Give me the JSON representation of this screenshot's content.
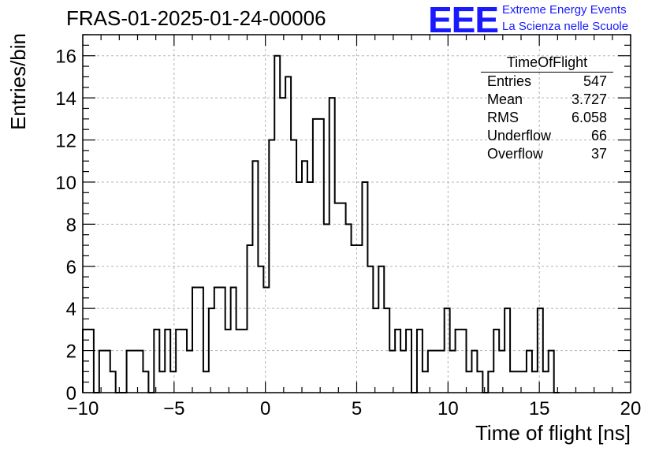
{
  "title": "FRAS-01-2025-01-24-00006",
  "logo": {
    "mark": "EEE",
    "line1": "Extreme Energy Events",
    "line2": "La Scienza nelle Scuole"
  },
  "stats": {
    "title": "TimeOfFlight",
    "rows": [
      {
        "label": "Entries",
        "value": "547"
      },
      {
        "label": "Mean",
        "value": "3.727"
      },
      {
        "label": "RMS",
        "value": "6.058"
      },
      {
        "label": "Underflow",
        "value": "66"
      },
      {
        "label": "Overflow",
        "value": "37"
      }
    ]
  },
  "colors": {
    "line": "#000000",
    "grid": "#b4b4b4",
    "logo": "#1a1aff"
  },
  "chart_data": {
    "type": "histogram",
    "xlabel": "Time of flight [ns]",
    "ylabel": "Entries/bin",
    "xlim": [
      -10,
      20
    ],
    "ylim": [
      0,
      17
    ],
    "grid": true,
    "bin_width": 0.3,
    "x_ticks": [
      -10,
      -5,
      0,
      5,
      10,
      15,
      20
    ],
    "x_tick_labels": [
      "−10",
      "−5",
      "0",
      "5",
      "10",
      "15",
      "20"
    ],
    "y_ticks": [
      0,
      2,
      4,
      6,
      8,
      10,
      12,
      14,
      16
    ],
    "y_tick_labels": [
      "0",
      "2",
      "4",
      "6",
      "8",
      "10",
      "12",
      "14",
      "16"
    ],
    "values": [
      3,
      3,
      0,
      2,
      2,
      1,
      0,
      0,
      2,
      2,
      2,
      1,
      0,
      3,
      1,
      3,
      1,
      3,
      3,
      2,
      5,
      5,
      1,
      4,
      5,
      5,
      3,
      5,
      3,
      3,
      7,
      11,
      6,
      5,
      12,
      16,
      14,
      15,
      12,
      10,
      11,
      10,
      13,
      13,
      8,
      14,
      9,
      9,
      8,
      7,
      7,
      10,
      6,
      4,
      6,
      4,
      2,
      3,
      2,
      3,
      0,
      3,
      1,
      2,
      2,
      2,
      4,
      2,
      3,
      3,
      1,
      2,
      1,
      0,
      1,
      3,
      2,
      4,
      1,
      1,
      1,
      2,
      1,
      4,
      1,
      2,
      0
    ]
  }
}
